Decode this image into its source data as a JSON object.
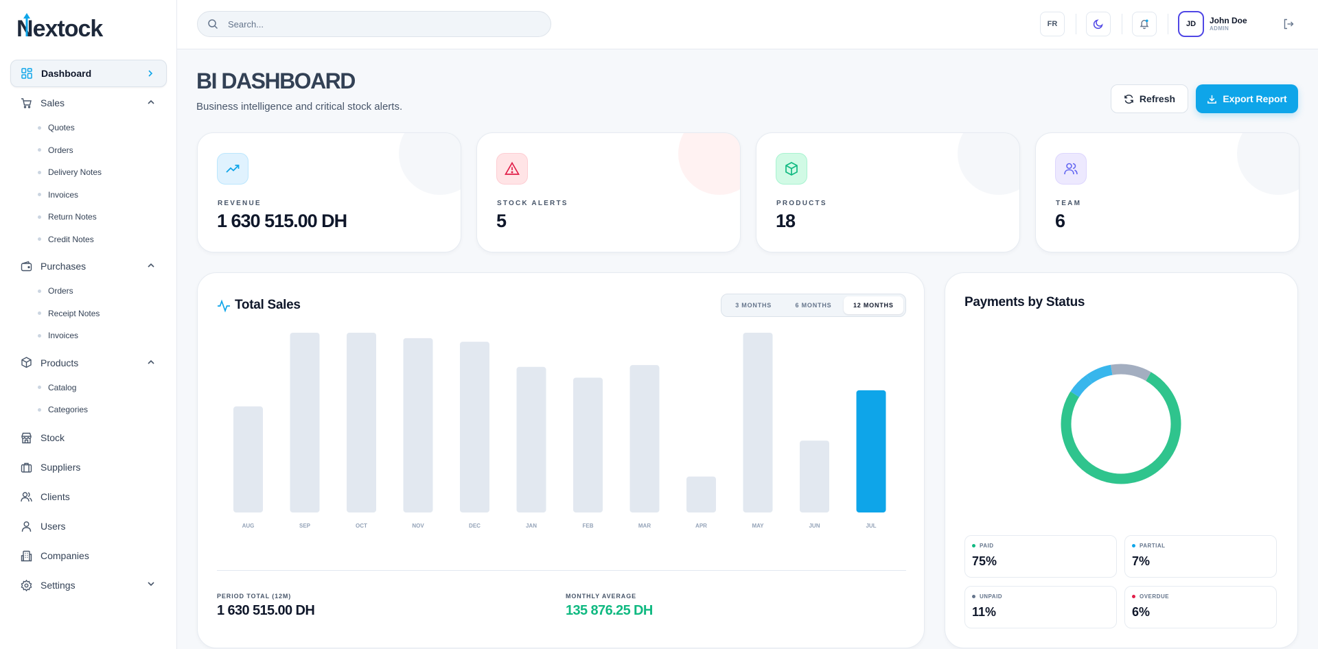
{
  "brand": {
    "logo_text": "extock",
    "logo_initial": "N"
  },
  "sidebar": {
    "dashboard": "Dashboard",
    "sales": {
      "label": "Sales",
      "items": [
        "Quotes",
        "Orders",
        "Delivery Notes",
        "Invoices",
        "Return Notes",
        "Credit Notes"
      ]
    },
    "purchases": {
      "label": "Purchases",
      "items": [
        "Orders",
        "Receipt Notes",
        "Invoices"
      ]
    },
    "products": {
      "label": "Products",
      "items": [
        "Catalog",
        "Categories"
      ]
    },
    "stock": "Stock",
    "suppliers": "Suppliers",
    "clients": "Clients",
    "users": "Users",
    "companies": "Companies",
    "settings": "Settings"
  },
  "header": {
    "search_placeholder": "Search...",
    "lang": "FR",
    "user": {
      "initials": "JD",
      "name": "John Doe",
      "role": "ADMIN"
    }
  },
  "page": {
    "title": "BI DASHBOARD",
    "subtitle": "Business intelligence and critical stock alerts.",
    "refresh_label": "Refresh",
    "export_label": "Export Report"
  },
  "kpis": [
    {
      "label": "REVENUE",
      "value": "1 630 515.00 DH",
      "icon": "trend-up-icon",
      "color": "#0ea5e9"
    },
    {
      "label": "STOCK ALERTS",
      "value": "5",
      "icon": "alert-triangle-icon",
      "color": "#e11d48"
    },
    {
      "label": "PRODUCTS",
      "value": "18",
      "icon": "box-icon",
      "color": "#10b981"
    },
    {
      "label": "TEAM",
      "value": "6",
      "icon": "users-icon",
      "color": "#6366f1"
    }
  ],
  "sales": {
    "title": "Total Sales",
    "ranges": [
      "3 MONTHS",
      "6 MONTHS",
      "12 MONTHS"
    ],
    "active_range": "12 MONTHS",
    "period_total_label": "PERIOD TOTAL (12M)",
    "period_total_value": "1 630 515.00 DH",
    "monthly_average_label": "MONTHLY AVERAGE",
    "monthly_average_value": "135 876.25 DH"
  },
  "chart_data": {
    "type": "bar",
    "categories": [
      "AUG",
      "SEP",
      "OCT",
      "NOV",
      "DEC",
      "JAN",
      "FEB",
      "MAR",
      "APR",
      "MAY",
      "JUN",
      "JUL"
    ],
    "values": [
      59,
      100,
      100,
      97,
      95,
      81,
      75,
      82,
      20,
      100,
      40,
      68
    ],
    "highlight_index": 11,
    "bar_color": "#e2e8f0",
    "highlight_color": "#0ea5e9",
    "ylim": [
      0,
      100
    ],
    "grid": false
  },
  "payments": {
    "title": "Payments by Status",
    "statuses": [
      {
        "label": "PAID",
        "value": "75%",
        "pct": 75,
        "color": "#10b981"
      },
      {
        "label": "PARTIAL",
        "value": "7%",
        "pct": 7,
        "color": "#0ea5e9"
      },
      {
        "label": "UNPAID",
        "value": "11%",
        "pct": 11,
        "color": "#64748b"
      },
      {
        "label": "OVERDUE",
        "value": "6%",
        "pct": 6,
        "color": "#e11d48"
      }
    ]
  }
}
